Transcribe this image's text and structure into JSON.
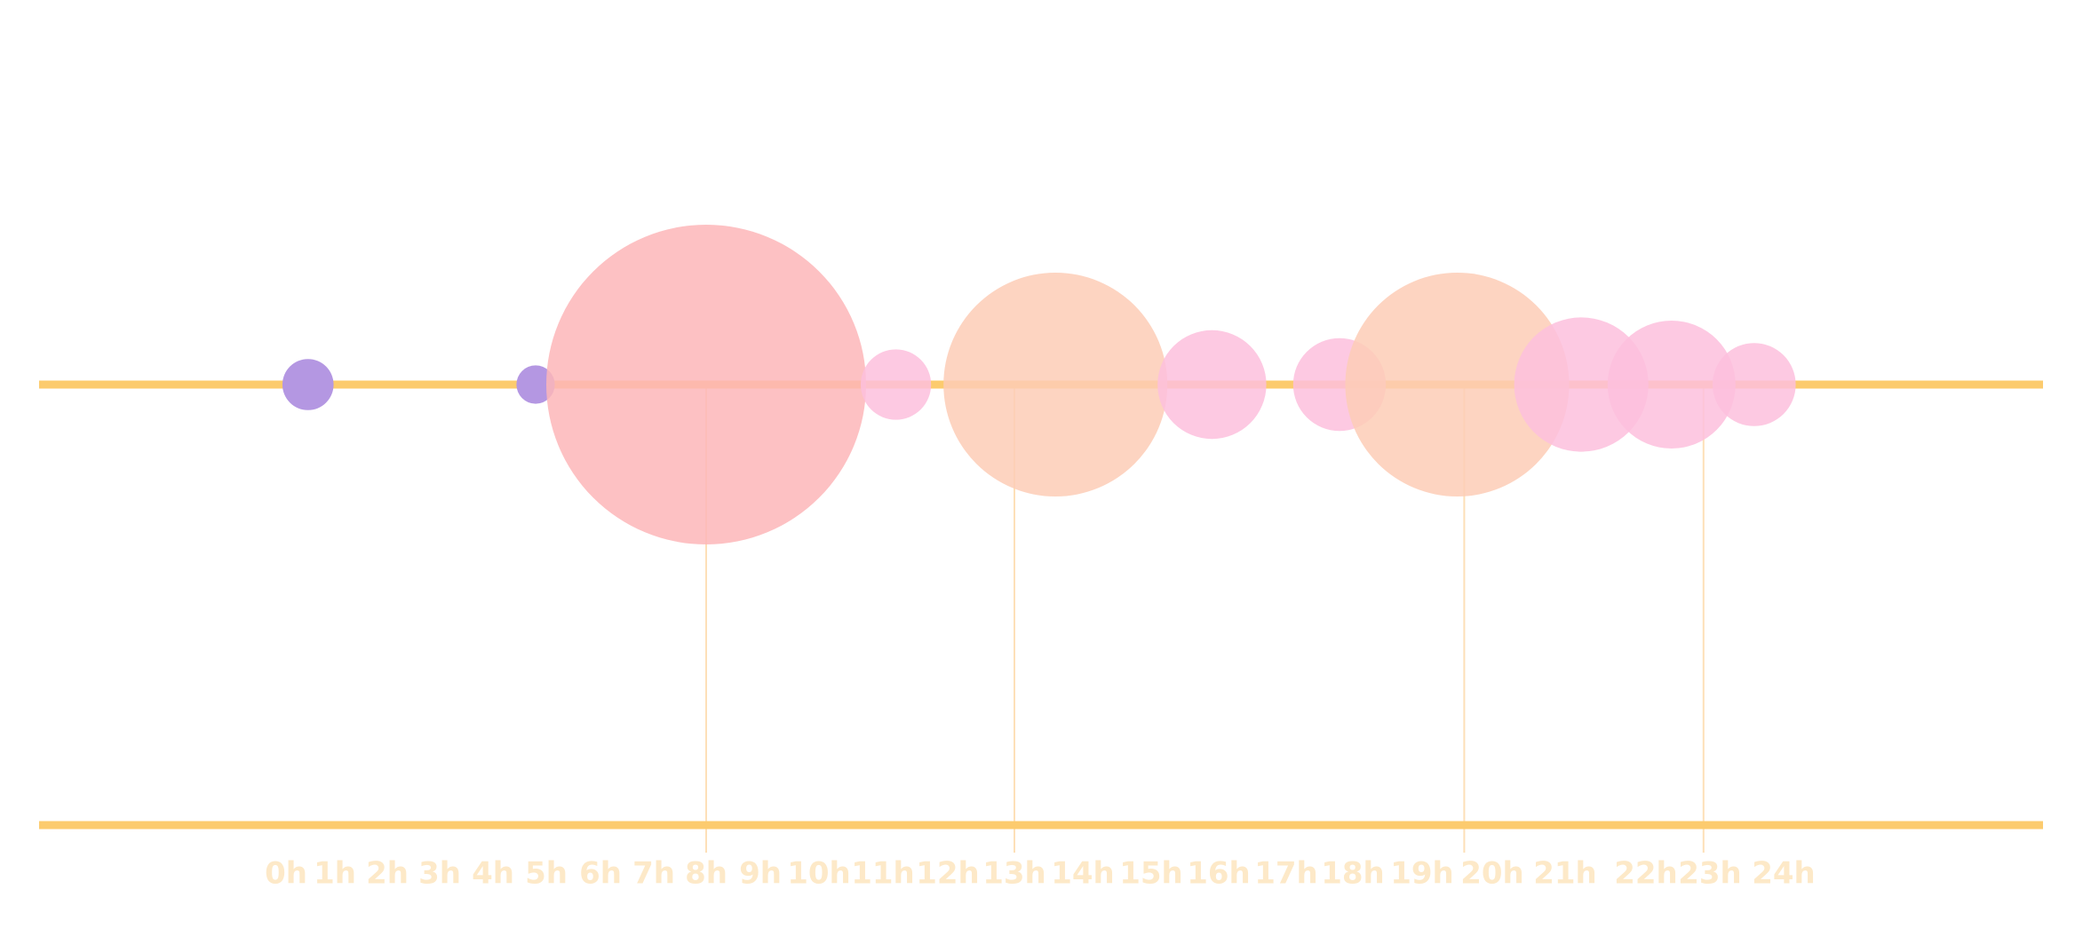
{
  "chart_data": {
    "type": "scatter",
    "title": "",
    "xlabel": "",
    "ylabel": "",
    "x_ticks": [
      "0h",
      "1h",
      "2h",
      "3h",
      "4h",
      "5h",
      "6h",
      "7h",
      "8h",
      "9h",
      "10h",
      "11h",
      "12h",
      "13h",
      "14h",
      "15h",
      "16h",
      "17h",
      "18h",
      "19h",
      "20h",
      "21h",
      "22h",
      "23h",
      "24h"
    ],
    "xlim": [
      0,
      24
    ],
    "grid": false,
    "legend": "none",
    "colors": {
      "axis": "#fccb6e",
      "tick_label": "#fde9c8",
      "marker_line": "#fde0b8",
      "purple": "#b497e2",
      "red": "#fdb6b8",
      "orange": "#fdcdb6",
      "pink": "#fdbfdd"
    },
    "bubbles": [
      {
        "x": 0.45,
        "size": 1.6,
        "color": "purple"
      },
      {
        "x": 4.8,
        "size": 1.2,
        "color": "purple"
      },
      {
        "x": 8.0,
        "size": 10.0,
        "color": "red"
      },
      {
        "x": 11.2,
        "size": 2.2,
        "color": "pink"
      },
      {
        "x": 13.6,
        "size": 7.0,
        "color": "orange"
      },
      {
        "x": 15.9,
        "size": 3.4,
        "color": "pink"
      },
      {
        "x": 17.8,
        "size": 2.9,
        "color": "pink"
      },
      {
        "x": 19.5,
        "size": 7.0,
        "color": "orange"
      },
      {
        "x": 21.2,
        "size": 4.2,
        "color": "pink"
      },
      {
        "x": 22.4,
        "size": 4.0,
        "color": "pink"
      },
      {
        "x": 23.6,
        "size": 2.6,
        "color": "pink"
      }
    ],
    "markers": [
      8,
      13,
      19.6,
      22.9
    ]
  }
}
